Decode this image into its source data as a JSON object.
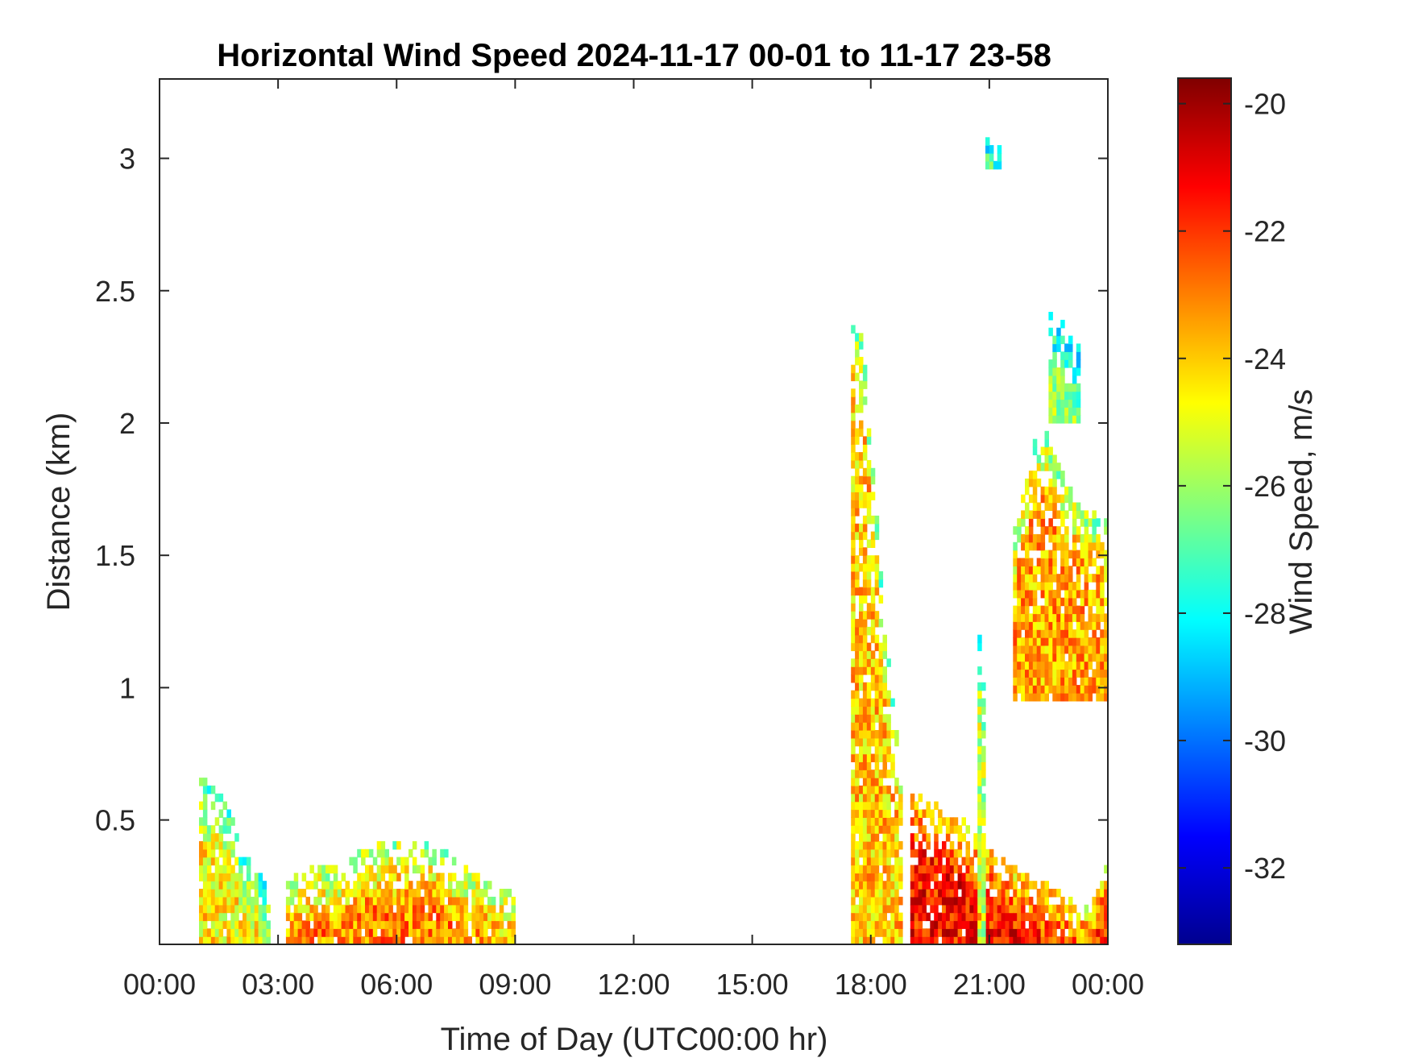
{
  "chart_data": {
    "type": "heatmap",
    "title": "Horizontal Wind Speed 2024-11-17 00-01 to 11-17 23-58",
    "xlabel": "Time of Day (UTC00:00 hr)",
    "ylabel": "Distance (km)",
    "colorbar_label": "Wind Speed, m/s",
    "x_ticks": [
      "00:00",
      "03:00",
      "06:00",
      "09:00",
      "12:00",
      "15:00",
      "18:00",
      "21:00",
      "00:00"
    ],
    "x_range_hours": [
      0,
      24
    ],
    "y_ticks": [
      "0.5",
      "1",
      "1.5",
      "2",
      "2.5",
      "3"
    ],
    "y_tick_values": [
      0.5,
      1,
      1.5,
      2,
      2.5,
      3
    ],
    "ylim": [
      0.03,
      3.3
    ],
    "colorbar_ticks": [
      "-20",
      "-22",
      "-24",
      "-26",
      "-28",
      "-30",
      "-32"
    ],
    "colorbar_tick_values": [
      -20,
      -22,
      -24,
      -26,
      -28,
      -30,
      -32
    ],
    "clim": [
      -33.2,
      -19.6
    ],
    "colormap": "jet",
    "grid": false,
    "colorbar_position": "right",
    "data_regions": [
      {
        "t_start": 1.0,
        "t_end": 2.8,
        "d_max": [
          0.65,
          0.6,
          0.55,
          0.35,
          0.3,
          0.2
        ],
        "mean": -24.5
      },
      {
        "t_start": 3.2,
        "t_end": 9.0,
        "d_max": [
          0.25,
          0.32,
          0.3,
          0.38,
          0.4,
          0.4,
          0.38,
          0.3,
          0.25,
          0.2
        ],
        "mean": -23.0
      },
      {
        "t_start": 17.5,
        "t_end": 18.8,
        "d_max": [
          2.4,
          2.3,
          1.8,
          1.25,
          0.9,
          0.6
        ],
        "mean": -24.0
      },
      {
        "t_start": 19.0,
        "t_end": 24.0,
        "d_max": [
          0.6,
          0.55,
          0.5,
          0.45,
          0.35,
          0.3,
          0.25,
          0.2,
          0.15,
          0.35
        ],
        "mean": -21.5
      },
      {
        "t_start": 20.7,
        "t_end": 20.9,
        "d_max": [
          1.2,
          0.8
        ],
        "mean": -25.5
      },
      {
        "t_start": 21.6,
        "t_end": 24.0,
        "d_max": [
          1.6,
          1.9,
          1.95,
          1.8,
          1.7,
          1.65,
          1.6
        ],
        "d_min": 0.95,
        "mean": -23.5
      },
      {
        "t_start": 22.5,
        "t_end": 23.3,
        "d_max": [
          2.4,
          2.35,
          2.25
        ],
        "d_min": 2.0,
        "mean": -26.0
      },
      {
        "t_start": 20.9,
        "t_end": 21.3,
        "d_max": [
          3.05,
          3.02
        ],
        "d_min": 2.96,
        "mean": -25.5
      }
    ]
  }
}
